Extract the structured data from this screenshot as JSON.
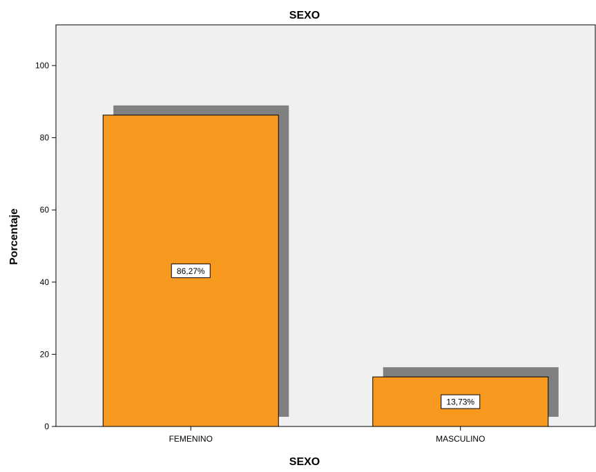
{
  "chart_data": {
    "type": "bar",
    "title": "SEXO",
    "xlabel": "SEXO",
    "ylabel": "Porcentaje",
    "categories": [
      "FEMENINO",
      "MASCULINO"
    ],
    "values": [
      86.27,
      13.73
    ],
    "data_labels": [
      "86,27%",
      "13,73%"
    ],
    "yticks": [
      "0",
      "20",
      "40",
      "60",
      "80",
      "100"
    ],
    "ylim": [
      0,
      110
    ],
    "grid": false,
    "legend": "none",
    "colors": {
      "bar": "#F7991E",
      "bar_stroke": "#000000",
      "shadow": "#808080",
      "plot_background": "#F0F0F0"
    }
  }
}
